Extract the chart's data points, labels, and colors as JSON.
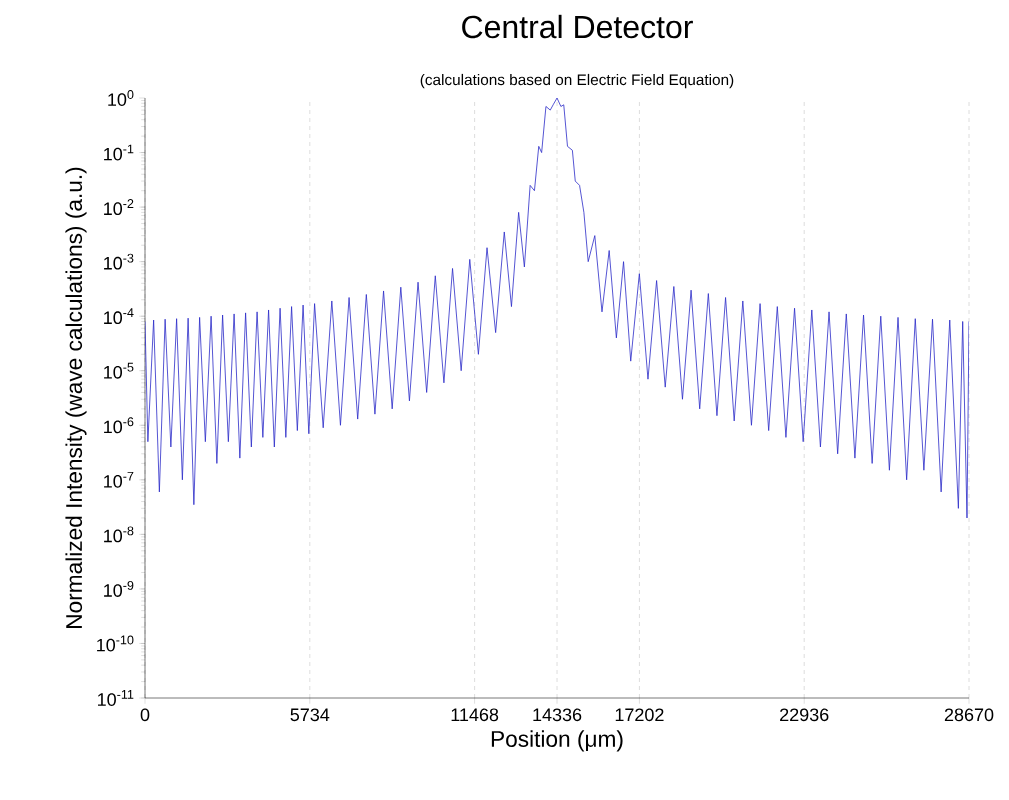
{
  "chart_data": {
    "type": "line",
    "title": "Central Detector",
    "subtitle": "(calculations based on Electric Field Equation)",
    "xlabel": "Position (μm)",
    "ylabel": "Normalized Intensity (wave calculations) (a.u.)",
    "log": "y",
    "grid": "x",
    "marker": "none",
    "line_style": "solid",
    "xlim": [
      0,
      28670
    ],
    "xticks": [
      0,
      5734,
      11468,
      14336,
      17202,
      22936,
      28670
    ],
    "ylim": [
      1e-11,
      1
    ],
    "yticks": [
      {
        "value": 1e-11,
        "label": "10$^{-11}$"
      },
      {
        "value": 1e-10,
        "label": "10$^{-10}$"
      },
      {
        "value": 1e-09,
        "label": "10$^{-9}$"
      },
      {
        "value": 1e-08,
        "label": "10$^{-8}$"
      },
      {
        "value": 1e-07,
        "label": "10$^{-7}$"
      },
      {
        "value": 1e-06,
        "label": "10$^{-6}$"
      },
      {
        "value": 1e-05,
        "label": "10$^{-5}$"
      },
      {
        "value": 0.0001,
        "label": "10$^{-4}$"
      },
      {
        "value": 0.001,
        "label": "10$^{-3}$"
      },
      {
        "value": 0.01,
        "label": "10$^{-2}$"
      },
      {
        "value": 0.1,
        "label": "10$^{-1}$"
      },
      {
        "value": 1,
        "label": "10$^{0}$"
      }
    ],
    "series": [
      {
        "color": "#2a2ac8",
        "x": [
          0,
          100,
          300,
          500,
          700,
          900,
          1100,
          1300,
          1500,
          1700,
          1900,
          2100,
          2300,
          2500,
          2700,
          2900,
          3100,
          3300,
          3500,
          3700,
          3900,
          4100,
          4300,
          4500,
          4700,
          4900,
          5100,
          5300,
          5500,
          5700,
          5900,
          6200,
          6500,
          6800,
          7100,
          7400,
          7700,
          8000,
          8300,
          8600,
          8900,
          9200,
          9500,
          9800,
          10100,
          10400,
          10700,
          11000,
          11300,
          11600,
          11900,
          12200,
          12500,
          12750,
          13000,
          13200,
          13400,
          13550,
          13700,
          13800,
          13950,
          14100,
          14200,
          14336,
          14470,
          14570,
          14700,
          14870,
          14970,
          15120,
          15270,
          15420,
          15650,
          15900,
          16150,
          16400,
          16650,
          16900,
          17200,
          17500,
          17800,
          18100,
          18400,
          18700,
          19000,
          19300,
          19600,
          19900,
          20200,
          20500,
          20800,
          21100,
          21400,
          21700,
          22000,
          22300,
          22600,
          22900,
          23200,
          23500,
          23800,
          24100,
          24400,
          24700,
          25000,
          25300,
          25600,
          25900,
          26200,
          26500,
          26800,
          27100,
          27400,
          27700,
          28000,
          28300,
          28450,
          28600,
          28670
        ],
        "values": [
          8e-05,
          5e-07,
          8.5e-05,
          6e-08,
          8.8e-05,
          4e-07,
          9e-05,
          1e-07,
          9.2e-05,
          3.5e-08,
          9.5e-05,
          5e-07,
          0.0001,
          2e-07,
          0.000105,
          5e-07,
          0.00011,
          2.5e-07,
          0.000115,
          4e-07,
          0.00012,
          6e-07,
          0.00013,
          4e-07,
          0.00014,
          6e-07,
          0.00015,
          8e-07,
          0.00016,
          7e-07,
          0.00017,
          9e-07,
          0.00019,
          1e-06,
          0.00022,
          1.3e-06,
          0.00025,
          1.6e-06,
          0.00029,
          2e-06,
          0.00034,
          2.8e-06,
          0.00042,
          4e-06,
          0.00055,
          6e-06,
          0.00075,
          1e-05,
          0.0011,
          2e-05,
          0.0018,
          5e-05,
          0.0035,
          0.00015,
          0.008,
          0.0008,
          0.025,
          0.02,
          0.13,
          0.1,
          0.7,
          0.6,
          0.75,
          1,
          0.7,
          0.75,
          0.13,
          0.11,
          0.03,
          0.025,
          0.008,
          0.001,
          0.003,
          0.00012,
          0.0016,
          4e-05,
          0.001,
          1.5e-05,
          0.0006,
          7e-06,
          0.00045,
          5e-06,
          0.00035,
          3e-06,
          0.0003,
          2e-06,
          0.00026,
          1.5e-06,
          0.00022,
          1.2e-06,
          0.00019,
          1e-06,
          0.00017,
          8e-07,
          0.00015,
          6e-07,
          0.00014,
          5e-07,
          0.00013,
          4e-07,
          0.00012,
          3e-07,
          0.00011,
          2.5e-07,
          0.000105,
          2e-07,
          0.0001,
          1.5e-07,
          9.5e-05,
          1e-07,
          9e-05,
          1.5e-07,
          8.8e-05,
          6e-08,
          8.5e-05,
          3e-08,
          8e-05,
          2e-08,
          8e-05
        ]
      }
    ]
  }
}
